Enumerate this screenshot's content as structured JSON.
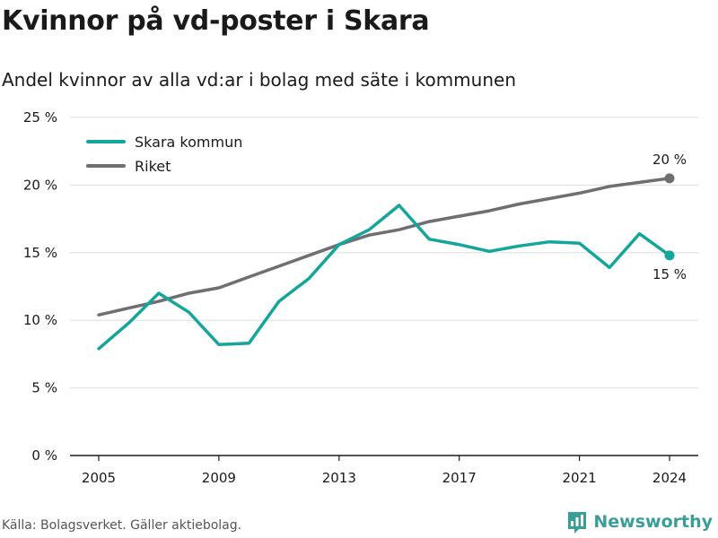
{
  "header": {
    "title": "Kvinnor på vd-poster i Skara",
    "subtitle": "Andel kvinnor av alla vd:ar i bolag med säte i kommunen"
  },
  "footer": {
    "source": "Källa: Bolagsverket. Gäller aktiebolag.",
    "brand": "Newsworthy"
  },
  "colors": {
    "skara": "#14a59b",
    "riket": "#6e6e73",
    "grid": "#dddddd",
    "axis": "#1a1a1a",
    "brand": "#3a9e96"
  },
  "chart_data": {
    "type": "line",
    "title": "Kvinnor på vd-poster i Skara",
    "subtitle": "Andel kvinnor av alla vd:ar i bolag med säte i kommunen",
    "xlabel": "",
    "ylabel": "",
    "x": [
      2005,
      2006,
      2007,
      2008,
      2009,
      2010,
      2011,
      2012,
      2013,
      2014,
      2015,
      2016,
      2017,
      2018,
      2019,
      2020,
      2021,
      2022,
      2023,
      2024
    ],
    "xlim": [
      2005,
      2024
    ],
    "ylim": [
      0,
      25
    ],
    "x_ticks": [
      2005,
      2009,
      2013,
      2017,
      2021,
      2024
    ],
    "y_ticks": [
      0,
      5,
      10,
      15,
      20,
      25
    ],
    "y_tick_labels": [
      "0 %",
      "5 %",
      "10 %",
      "15 %",
      "20 %",
      "25 %"
    ],
    "grid": "horizontal",
    "legend_position": "top-left",
    "series": [
      {
        "name": "Skara kommun",
        "color": "#14a59b",
        "values": [
          7.9,
          9.8,
          12.0,
          10.6,
          8.2,
          8.3,
          11.4,
          13.1,
          15.6,
          16.7,
          18.5,
          16.0,
          15.6,
          15.1,
          15.5,
          15.8,
          15.7,
          13.9,
          16.4,
          14.8
        ],
        "end_label": "15 %"
      },
      {
        "name": "Riket",
        "color": "#6e6e73",
        "values": [
          10.4,
          10.9,
          11.4,
          12.0,
          12.4,
          13.2,
          14.0,
          14.8,
          15.6,
          16.3,
          16.7,
          17.3,
          17.7,
          18.1,
          18.6,
          19.0,
          19.4,
          19.9,
          20.2,
          20.5
        ],
        "end_label": "20 %"
      }
    ]
  }
}
